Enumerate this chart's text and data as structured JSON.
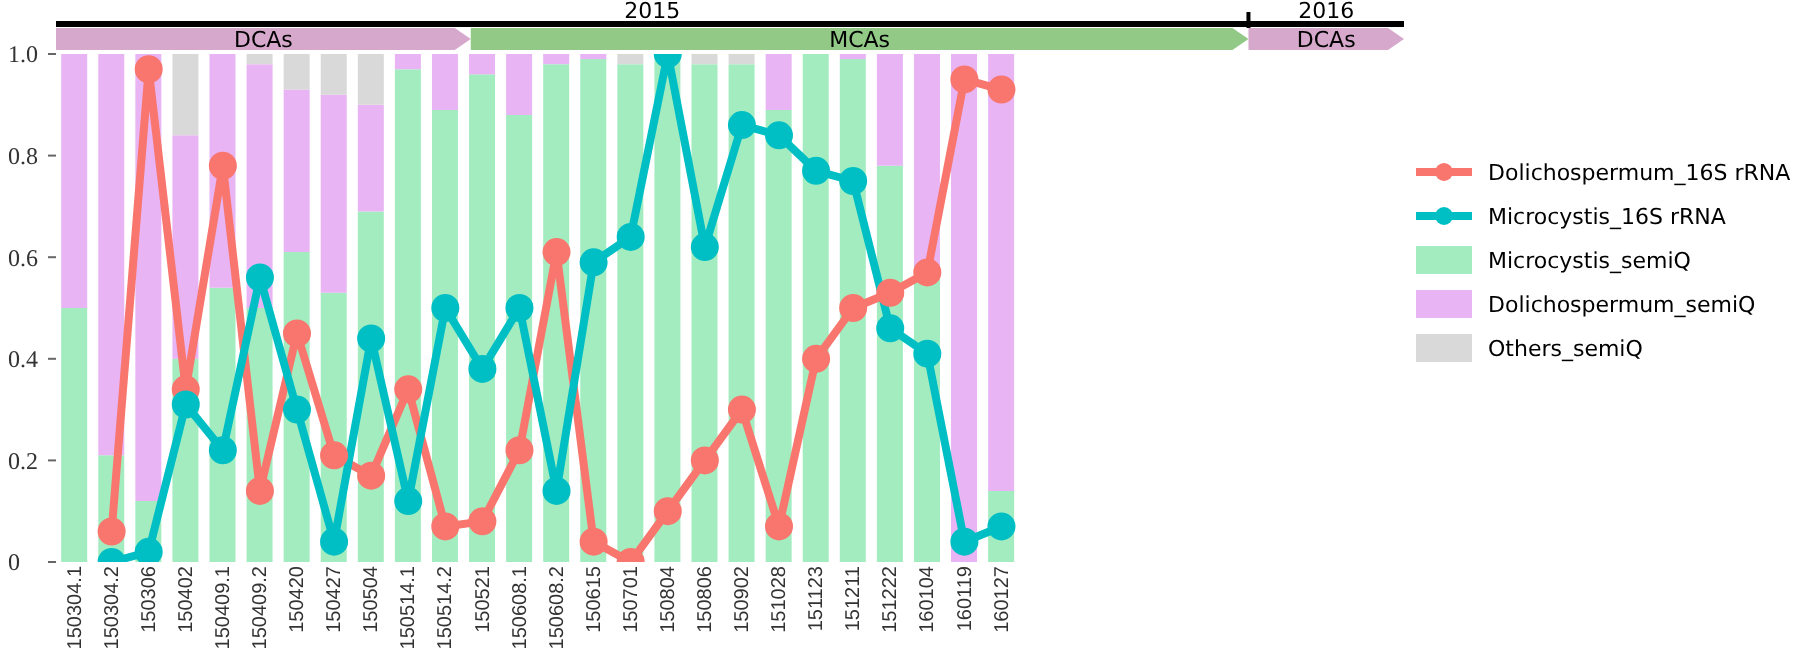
{
  "chart_data": {
    "type": "bar",
    "stacked": true,
    "categories": [
      "150304.1",
      "150304.2",
      "150306",
      "150402",
      "150409.1",
      "150409.2",
      "150420",
      "150427",
      "150504",
      "150514.1",
      "150514.2",
      "150521",
      "150608.1",
      "150608.2",
      "150615",
      "150701",
      "150804",
      "150806",
      "150902",
      "151028",
      "151123",
      "151211",
      "151222",
      "160104",
      "160119",
      "160127"
    ],
    "series": [
      {
        "name": "Dolichospermum_16S rRNA",
        "type": "line",
        "color": "#f8766d",
        "values": [
          null,
          0.06,
          0.97,
          0.34,
          0.78,
          0.14,
          0.45,
          0.21,
          0.17,
          0.34,
          0.07,
          0.08,
          0.22,
          0.61,
          0.04,
          0.0,
          0.1,
          0.2,
          0.3,
          0.07,
          0.4,
          0.5,
          0.53,
          0.57,
          0.95,
          0.93
        ]
      },
      {
        "name": "Microcystis_16S rRNA",
        "type": "line",
        "color": "#00bfc4",
        "values": [
          null,
          0.0,
          0.02,
          0.31,
          0.22,
          0.56,
          0.3,
          0.04,
          0.44,
          0.12,
          0.5,
          0.38,
          0.5,
          0.14,
          0.59,
          0.64,
          1.0,
          0.62,
          0.86,
          0.84,
          0.77,
          0.75,
          0.46,
          0.41,
          0.04,
          0.07
        ]
      },
      {
        "name": "Microcystis_semiQ",
        "color": "#a3ecc0",
        "values": [
          0.5,
          0.21,
          0.12,
          0.4,
          0.54,
          0.5,
          0.61,
          0.53,
          0.69,
          0.97,
          0.89,
          0.96,
          0.88,
          0.98,
          0.99,
          0.98,
          1.0,
          0.98,
          0.98,
          0.89,
          1.0,
          0.99,
          0.78,
          0.58,
          0.0,
          0.14
        ]
      },
      {
        "name": "Dolichospermum_semiQ",
        "color": "#e8b4f4",
        "values": [
          0.5,
          0.79,
          0.88,
          0.44,
          0.46,
          0.48,
          0.32,
          0.39,
          0.21,
          0.03,
          0.11,
          0.04,
          0.12,
          0.02,
          0.01,
          0.0,
          0.0,
          0.0,
          0.0,
          0.11,
          0.0,
          0.01,
          0.22,
          0.42,
          1.0,
          0.86
        ]
      },
      {
        "name": "Others_semiQ",
        "color": "#d9d9d9",
        "values": [
          0.0,
          0.0,
          0.0,
          0.16,
          0.0,
          0.02,
          0.07,
          0.08,
          0.1,
          0.0,
          0.0,
          0.0,
          0.0,
          0.0,
          0.0,
          0.02,
          0.0,
          0.02,
          0.02,
          0.0,
          0.0,
          0.0,
          0.0,
          0.0,
          0.0,
          0.0
        ]
      }
    ],
    "ylim": [
      0,
      1
    ],
    "yticks": [
      0,
      0.2,
      0.4,
      0.6,
      0.8,
      {
        "value": 1,
        "label": "1.0"
      }
    ],
    "annotations": [
      "2015",
      "2016",
      "DCAs",
      "MCAs",
      "DCAs"
    ],
    "legend": "right",
    "marker": "circle",
    "line_style": "solid",
    "grid": false
  }
}
